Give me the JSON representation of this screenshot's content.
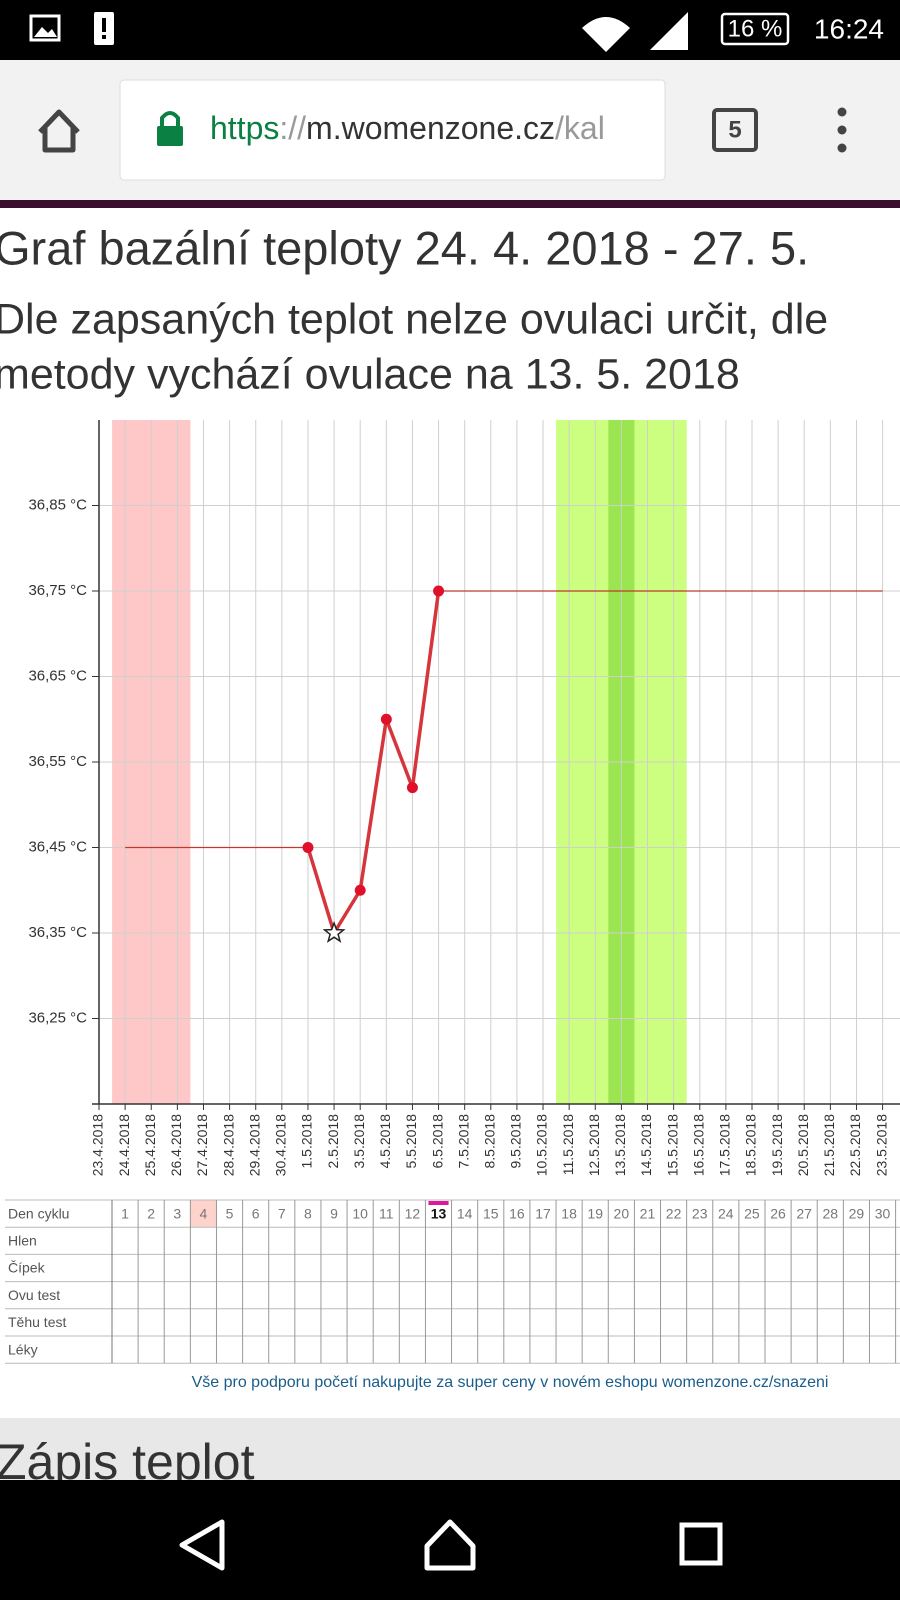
{
  "status_bar": {
    "battery": "16 %",
    "time": "16:24"
  },
  "browser": {
    "url_scheme": "https",
    "url_separator": "://",
    "url_host": "m.womenzone.cz",
    "url_path": "/kal",
    "tab_count": "5"
  },
  "page": {
    "title": "Graf bazální teploty 24. 4. 2018 - 27. 5.",
    "subtitle_lines": [
      "Dle zapsaných teplot nelze ovulaci určit, dle",
      "metody vychází ovulace na 13. 5. 2018"
    ],
    "footer_link": "Vše pro podporu početí nakupujte za super ceny v novém eshopu womenzone.cz/snazeni",
    "next_section": "Zápis teplot"
  },
  "chart_data": {
    "type": "line",
    "categories": [
      "23.4.2018",
      "24.4.2018",
      "25.4.2018",
      "26.4.2018",
      "27.4.2018",
      "28.4.2018",
      "29.4.2018",
      "30.4.2018",
      "1.5.2018",
      "2.5.2018",
      "3.5.2018",
      "4.5.2018",
      "5.5.2018",
      "6.5.2018",
      "7.5.2018",
      "8.5.2018",
      "9.5.2018",
      "10.5.2018",
      "11.5.2018",
      "12.5.2018",
      "13.5.2018",
      "14.5.2018",
      "15.5.2018",
      "16.5.2018",
      "17.5.2018",
      "18.5.2018",
      "19.5.2018",
      "20.5.2018",
      "21.5.2018",
      "22.5.2018",
      "23.5.2018"
    ],
    "series": [
      {
        "color": "#d6353c",
        "markers": true,
        "star_category": "2.5.2018",
        "values": [
          null,
          null,
          null,
          null,
          null,
          null,
          null,
          null,
          36.45,
          36.35,
          36.4,
          36.6,
          36.52,
          36.75,
          null,
          null,
          null,
          null,
          null,
          null,
          null,
          null,
          null,
          null,
          null,
          null,
          null,
          null,
          null,
          null,
          null
        ]
      },
      {
        "color": "#c0392b",
        "markers": false,
        "values": [
          null,
          36.45,
          36.45,
          36.45,
          36.45,
          36.45,
          36.45,
          36.45,
          36.45,
          null,
          null,
          null,
          null,
          36.75,
          36.75,
          36.75,
          36.75,
          36.75,
          36.75,
          36.75,
          36.75,
          36.75,
          36.75,
          36.75,
          36.75,
          36.75,
          36.75,
          36.75,
          36.75,
          36.75,
          36.75
        ]
      }
    ],
    "ylim": [
      36.15,
      36.95
    ],
    "yticks": [
      {
        "value": 36.25,
        "label": "36,25 °C"
      },
      {
        "value": 36.35,
        "label": "36,35 °C"
      },
      {
        "value": 36.45,
        "label": "36,45 °C"
      },
      {
        "value": 36.55,
        "label": "36,55 °C"
      },
      {
        "value": 36.65,
        "label": "36,65 °C"
      },
      {
        "value": 36.75,
        "label": "36,75 °C"
      },
      {
        "value": 36.85,
        "label": "36,85 °C"
      }
    ],
    "grid": true,
    "bands": [
      {
        "start": "24.4.2018",
        "end": "26.4.2018",
        "color": "#ffc8c8"
      },
      {
        "start": "11.5.2018",
        "end": "15.5.2018",
        "color": "#ccff80"
      },
      {
        "start": "13.5.2018",
        "end": "13.5.2018",
        "color": "#9be650"
      }
    ]
  },
  "table": {
    "row_labels": [
      "Den cyklu",
      "Hlen",
      "Čípek",
      "Ovu test",
      "Těhu test",
      "Léky"
    ],
    "cycle_days": [
      1,
      2,
      3,
      4,
      5,
      6,
      7,
      8,
      9,
      10,
      11,
      12,
      13,
      14,
      15,
      16,
      17,
      18,
      19,
      20,
      21,
      22,
      23,
      24,
      25,
      26,
      27,
      28,
      29,
      30
    ],
    "period_day": 4,
    "current_day": 13
  }
}
